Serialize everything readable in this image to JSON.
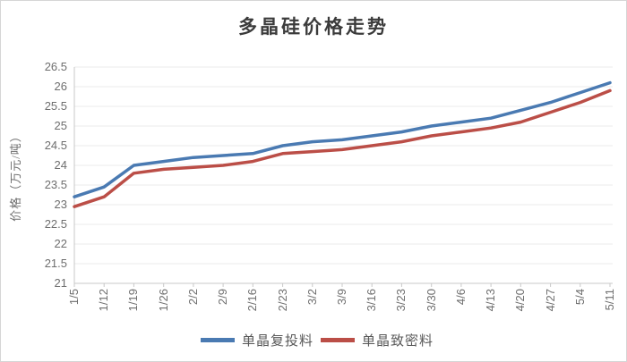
{
  "title_bar": {},
  "chart_data": {
    "type": "line",
    "title": "多晶硅价格走势",
    "ylabel": "价格（万元/吨）",
    "xlabel": "",
    "categories": [
      "1/5",
      "1/12",
      "1/19",
      "1/26",
      "2/2",
      "2/9",
      "2/16",
      "2/23",
      "3/2",
      "3/9",
      "3/16",
      "3/23",
      "3/30",
      "4/6",
      "4/13",
      "4/20",
      "4/27",
      "5/4",
      "5/11"
    ],
    "series": [
      {
        "name": "单晶复投料",
        "color": "#4a7ab2",
        "values": [
          23.2,
          23.45,
          24.0,
          24.1,
          24.2,
          24.25,
          24.3,
          24.5,
          24.6,
          24.65,
          24.75,
          24.85,
          25.0,
          25.1,
          25.2,
          25.4,
          25.6,
          25.85,
          26.1
        ]
      },
      {
        "name": "单晶致密料",
        "color": "#bb4e47",
        "values": [
          22.95,
          23.2,
          23.8,
          23.9,
          23.95,
          24.0,
          24.1,
          24.3,
          24.35,
          24.4,
          24.5,
          24.6,
          24.75,
          24.85,
          24.95,
          25.1,
          25.35,
          25.6,
          25.9
        ]
      }
    ],
    "ylim": [
      21,
      26.5
    ],
    "ytick_step": 0.5,
    "grid": true,
    "grid_color": "#ebebeb",
    "axis_color": "#c8c8c8",
    "legend_position": "bottom"
  }
}
